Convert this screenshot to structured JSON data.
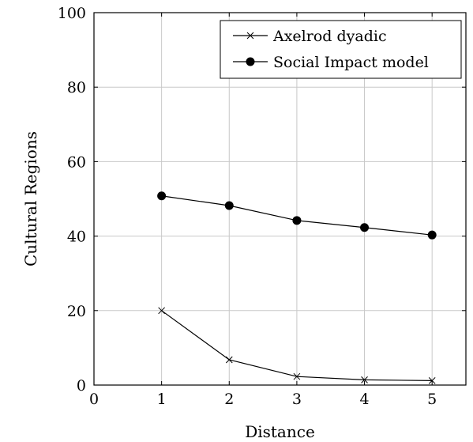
{
  "chart_data": {
    "type": "line",
    "xlabel": "Distance",
    "ylabel": "Cultural Regions",
    "xlim": [
      0,
      5.5
    ],
    "ylim": [
      0,
      100
    ],
    "xticks": [
      0,
      1,
      2,
      3,
      4,
      5
    ],
    "yticks": [
      0,
      20,
      40,
      60,
      80,
      100
    ],
    "grid": true,
    "legend_position": "top-right",
    "series": [
      {
        "name": "Axelrod dyadic",
        "marker": "x",
        "x": [
          1,
          2,
          3,
          4,
          5
        ],
        "y": [
          20,
          6.8,
          2.3,
          1.4,
          1.2
        ]
      },
      {
        "name": "Social Impact model",
        "marker": "filled-circle",
        "x": [
          1,
          2,
          3,
          4,
          5
        ],
        "y": [
          50.8,
          48.2,
          44.2,
          42.3,
          40.3
        ]
      }
    ]
  }
}
